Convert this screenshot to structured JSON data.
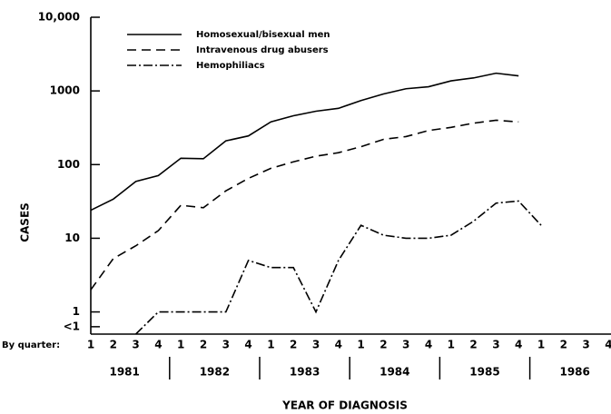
{
  "chart_data": {
    "type": "line",
    "x_label": "YEAR OF DIAGNOSIS",
    "y_label": "CASES",
    "x_prefix": "By quarter:",
    "categories": [
      "1",
      "2",
      "3",
      "4",
      "1",
      "2",
      "3",
      "4",
      "1",
      "2",
      "3",
      "4",
      "1",
      "2",
      "3",
      "4",
      "1",
      "2",
      "3",
      "4",
      "1",
      "2",
      "3",
      "4"
    ],
    "years": [
      "1981",
      "1982",
      "1983",
      "1984",
      "1985",
      "1986"
    ],
    "log_scale": true,
    "ylim": [
      0.5,
      10000
    ],
    "yticks": [
      {
        "value": 10000,
        "label": "10,000"
      },
      1000,
      100,
      10,
      1,
      {
        "value": 0.63,
        "label": "<1"
      }
    ],
    "series": [
      {
        "name": "Homosexual/bisexual men",
        "color": "#000000",
        "style": "solid",
        "values": [
          24,
          34,
          59,
          71,
          122,
          120,
          210,
          245,
          380,
          460,
          530,
          580,
          740,
          910,
          1070,
          1140,
          1370,
          1500,
          1740,
          1600,
          null,
          null,
          null,
          null
        ]
      },
      {
        "name": "Intravenous drug abusers",
        "color": "#000000",
        "style": "dashed",
        "values": [
          2,
          5.3,
          7.9,
          12.7,
          28,
          26,
          44,
          65,
          89,
          109,
          130,
          145,
          175,
          220,
          240,
          290,
          320,
          365,
          400,
          380,
          null,
          null,
          null,
          null
        ]
      },
      {
        "name": "Hemophiliacs",
        "color": "#000000",
        "style": "dashdot",
        "values": [
          null,
          null,
          0.5,
          1,
          1,
          1,
          1,
          5,
          4,
          4,
          1,
          5,
          15,
          11,
          10,
          10,
          11,
          17,
          30,
          32,
          15,
          null,
          null,
          null
        ]
      }
    ]
  }
}
